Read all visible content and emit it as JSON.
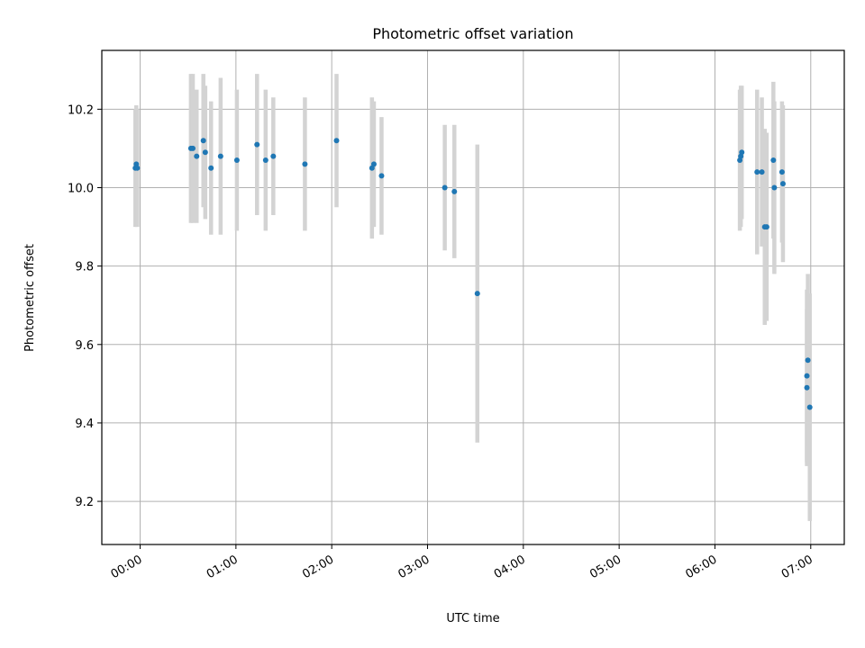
{
  "chart_data": {
    "type": "scatter",
    "title": "Photometric offset variation",
    "xlabel": "UTC time",
    "ylabel": "Photometric offset",
    "x_unit": "hours UTC",
    "xlim": [
      -0.4,
      7.35
    ],
    "ylim": [
      9.09,
      10.35
    ],
    "x_ticks": [
      0,
      1,
      2,
      3,
      4,
      5,
      6,
      7
    ],
    "x_tick_labels": [
      "00:00",
      "01:00",
      "02:00",
      "03:00",
      "04:00",
      "05:00",
      "06:00",
      "07:00"
    ],
    "y_ticks": [
      9.2,
      9.4,
      9.6,
      9.8,
      10.0,
      10.2
    ],
    "y_tick_labels": [
      "9.2",
      "9.4",
      "9.6",
      "9.8",
      "10.0",
      "10.2"
    ],
    "grid": true,
    "point_color": "#1f77b4",
    "errorbar_color": "#d3d3d3",
    "points": [
      {
        "x": -0.05,
        "y": 10.05,
        "err": 0.15
      },
      {
        "x": -0.04,
        "y": 10.06,
        "err": 0.15
      },
      {
        "x": -0.03,
        "y": 10.05,
        "err": 0.15
      },
      {
        "x": 0.53,
        "y": 10.1,
        "err": 0.19
      },
      {
        "x": 0.55,
        "y": 10.1,
        "err": 0.19
      },
      {
        "x": 0.59,
        "y": 10.08,
        "err": 0.17
      },
      {
        "x": 0.66,
        "y": 10.12,
        "err": 0.17
      },
      {
        "x": 0.68,
        "y": 10.09,
        "err": 0.17
      },
      {
        "x": 0.74,
        "y": 10.05,
        "err": 0.17
      },
      {
        "x": 0.84,
        "y": 10.08,
        "err": 0.2
      },
      {
        "x": 1.01,
        "y": 10.07,
        "err": 0.18
      },
      {
        "x": 1.22,
        "y": 10.11,
        "err": 0.18
      },
      {
        "x": 1.31,
        "y": 10.07,
        "err": 0.18
      },
      {
        "x": 1.39,
        "y": 10.08,
        "err": 0.15
      },
      {
        "x": 1.72,
        "y": 10.06,
        "err": 0.17
      },
      {
        "x": 2.05,
        "y": 10.12,
        "err": 0.17
      },
      {
        "x": 2.42,
        "y": 10.05,
        "err": 0.18
      },
      {
        "x": 2.44,
        "y": 10.06,
        "err": 0.16
      },
      {
        "x": 2.52,
        "y": 10.03,
        "err": 0.15
      },
      {
        "x": 3.18,
        "y": 10.0,
        "err": 0.16
      },
      {
        "x": 3.28,
        "y": 9.99,
        "err": 0.17
      },
      {
        "x": 3.52,
        "y": 9.73,
        "err": 0.38
      },
      {
        "x": 6.26,
        "y": 10.07,
        "err": 0.18
      },
      {
        "x": 6.27,
        "y": 10.08,
        "err": 0.18
      },
      {
        "x": 6.28,
        "y": 10.09,
        "err": 0.17
      },
      {
        "x": 6.44,
        "y": 10.04,
        "err": 0.21
      },
      {
        "x": 6.49,
        "y": 10.04,
        "err": 0.19
      },
      {
        "x": 6.52,
        "y": 9.9,
        "err": 0.25
      },
      {
        "x": 6.54,
        "y": 9.9,
        "err": 0.24
      },
      {
        "x": 6.61,
        "y": 10.07,
        "err": 0.2
      },
      {
        "x": 6.62,
        "y": 10.0,
        "err": 0.22
      },
      {
        "x": 6.7,
        "y": 10.04,
        "err": 0.18
      },
      {
        "x": 6.71,
        "y": 10.01,
        "err": 0.2
      },
      {
        "x": 6.96,
        "y": 9.49,
        "err": 0.2
      },
      {
        "x": 6.96,
        "y": 9.52,
        "err": 0.22
      },
      {
        "x": 6.97,
        "y": 9.56,
        "err": 0.22
      },
      {
        "x": 6.99,
        "y": 9.44,
        "err": 0.29
      }
    ]
  }
}
